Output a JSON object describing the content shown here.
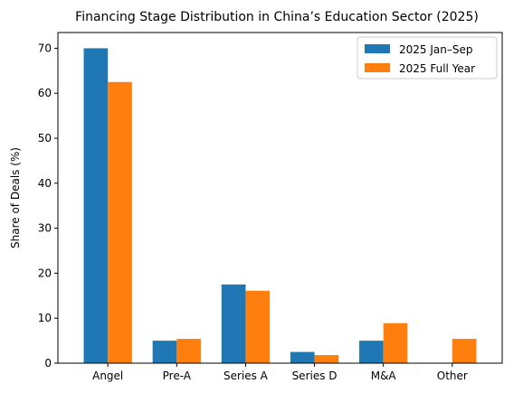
{
  "chart_data": {
    "type": "bar",
    "title": "Financing Stage Distribution in China’s Education Sector (2025)",
    "xlabel": "",
    "ylabel": "Share of Deals (%)",
    "categories": [
      "Angel",
      "Pre-A",
      "Series A",
      "Series D",
      "M&A",
      "Other"
    ],
    "series": [
      {
        "name": "2025 Jan–Sep",
        "color": "#1f77b4",
        "values": [
          70.0,
          5.0,
          17.5,
          2.5,
          5.0,
          0.0
        ]
      },
      {
        "name": "2025 Full Year",
        "color": "#ff7f0e",
        "values": [
          62.5,
          5.4,
          16.1,
          1.8,
          8.9,
          5.4
        ]
      }
    ],
    "ylim": [
      0,
      73.5
    ],
    "yticks": [
      0,
      10,
      20,
      30,
      40,
      50,
      60,
      70
    ],
    "grid": false,
    "legend_position": "top-right"
  }
}
